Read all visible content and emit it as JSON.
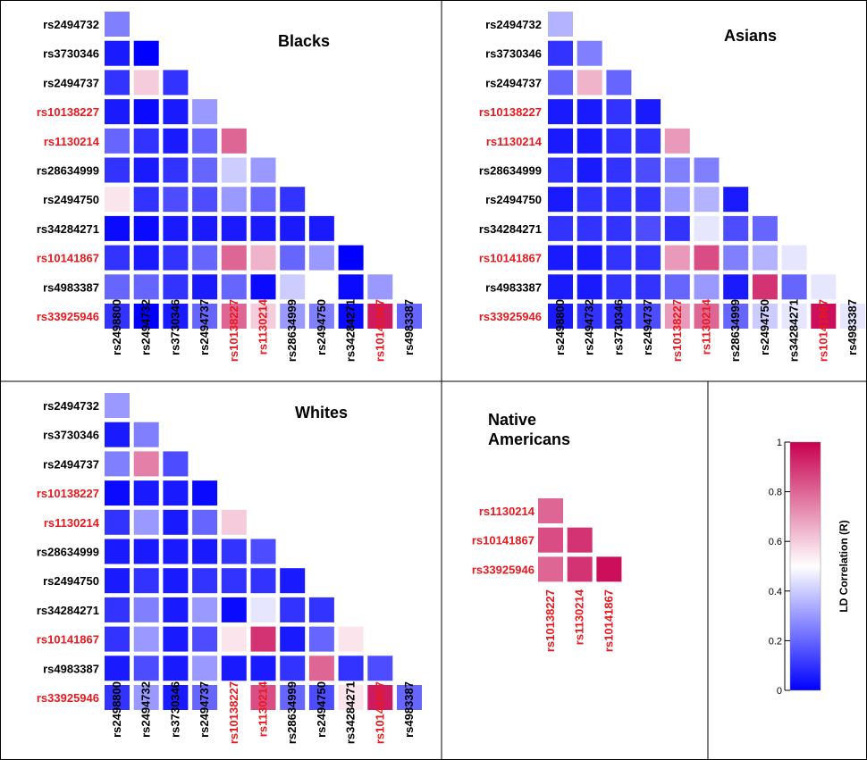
{
  "chart_data": [
    {
      "type": "heatmap",
      "title": "Blacks",
      "rows": [
        "rs2494732",
        "rs3730346",
        "rs2494737",
        "rs10138227",
        "rs1130214",
        "rs28634999",
        "rs2494750",
        "rs34284271",
        "rs10141867",
        "rs4983387",
        "rs33925946"
      ],
      "columns": [
        "rs2498800",
        "rs2494732",
        "rs3730346",
        "rs2494737",
        "rs10138227",
        "rs1130214",
        "rs28634999",
        "rs2494750",
        "rs34284271",
        "rs10141867",
        "rs4983387"
      ],
      "highlighted": [
        "rs10138227",
        "rs1130214",
        "rs10141867",
        "rs33925946"
      ],
      "values": [
        [
          0.25
        ],
        [
          0.05,
          0.0
        ],
        [
          0.1,
          0.6,
          0.1
        ],
        [
          0.05,
          0.02,
          0.05,
          0.3
        ],
        [
          0.2,
          0.1,
          0.05,
          0.2,
          0.8
        ],
        [
          0.1,
          0.05,
          0.1,
          0.2,
          0.4,
          0.3
        ],
        [
          0.55,
          0.1,
          0.15,
          0.15,
          0.3,
          0.2,
          0.1
        ],
        [
          0.02,
          0.02,
          0.05,
          0.05,
          0.05,
          0.05,
          0.05,
          0.05
        ],
        [
          0.1,
          0.05,
          0.1,
          0.2,
          0.8,
          0.65,
          0.2,
          0.3,
          0.0
        ],
        [
          0.2,
          0.2,
          0.1,
          0.05,
          0.2,
          0.02,
          0.4,
          0.5,
          0.02,
          0.3
        ],
        [
          0.1,
          0.0,
          0.05,
          0.2,
          0.8,
          0.6,
          0.3,
          0.25,
          0.02,
          0.95,
          0.2
        ]
      ]
    },
    {
      "type": "heatmap",
      "title": "Asians",
      "rows": [
        "rs2494732",
        "rs3730346",
        "rs2494737",
        "rs10138227",
        "rs1130214",
        "rs28634999",
        "rs2494750",
        "rs34284271",
        "rs10141867",
        "rs4983387",
        "rs33925946"
      ],
      "columns": [
        "rs2498800",
        "rs2494732",
        "rs3730346",
        "rs2494737",
        "rs10138227",
        "rs1130214",
        "rs28634999",
        "rs2494750",
        "rs34284271",
        "rs10141867",
        "rs4983387"
      ],
      "highlighted": [
        "rs10138227",
        "rs1130214",
        "rs10141867",
        "rs33925946"
      ],
      "values": [
        [
          0.35
        ],
        [
          0.1,
          0.25
        ],
        [
          0.2,
          0.65,
          0.2
        ],
        [
          0.05,
          0.05,
          0.1,
          0.05
        ],
        [
          0.05,
          0.05,
          0.1,
          0.1,
          0.7
        ],
        [
          0.1,
          0.05,
          0.1,
          0.15,
          0.25,
          0.25
        ],
        [
          0.05,
          0.1,
          0.1,
          0.1,
          0.3,
          0.35,
          0.05
        ],
        [
          0.1,
          0.1,
          0.1,
          0.15,
          0.1,
          0.45,
          0.15,
          0.2
        ],
        [
          0.05,
          0.05,
          0.1,
          0.1,
          0.7,
          0.85,
          0.25,
          0.35,
          0.45
        ],
        [
          0.05,
          0.05,
          0.1,
          0.1,
          0.2,
          0.3,
          0.05,
          0.9,
          0.2,
          0.45
        ],
        [
          0.05,
          0.1,
          0.1,
          0.15,
          0.7,
          0.8,
          0.2,
          0.4,
          0.45,
          0.97,
          0.45
        ]
      ]
    },
    {
      "type": "heatmap",
      "title": "Whites",
      "rows": [
        "rs2494732",
        "rs3730346",
        "rs2494737",
        "rs10138227",
        "rs1130214",
        "rs28634999",
        "rs2494750",
        "rs34284271",
        "rs10141867",
        "rs4983387",
        "rs33925946"
      ],
      "columns": [
        "rs2498800",
        "rs2494732",
        "rs3730346",
        "rs2494737",
        "rs10138227",
        "rs1130214",
        "rs28634999",
        "rs2494750",
        "rs34284271",
        "rs10141867",
        "rs4983387"
      ],
      "highlighted": [
        "rs10138227",
        "rs1130214",
        "rs10141867",
        "rs33925946"
      ],
      "values": [
        [
          0.3
        ],
        [
          0.05,
          0.25
        ],
        [
          0.25,
          0.75,
          0.15
        ],
        [
          0.02,
          0.05,
          0.05,
          0.02
        ],
        [
          0.1,
          0.3,
          0.05,
          0.2,
          0.6
        ],
        [
          0.05,
          0.05,
          0.05,
          0.05,
          0.1,
          0.15
        ],
        [
          0.05,
          0.1,
          0.05,
          0.1,
          0.1,
          0.1,
          0.05
        ],
        [
          0.1,
          0.25,
          0.05,
          0.3,
          0.02,
          0.45,
          0.1,
          0.1
        ],
        [
          0.1,
          0.3,
          0.05,
          0.15,
          0.55,
          0.9,
          0.05,
          0.2,
          0.55
        ],
        [
          0.05,
          0.15,
          0.05,
          0.3,
          0.05,
          0.05,
          0.1,
          0.8,
          0.1,
          0.15
        ],
        [
          0.1,
          0.3,
          0.05,
          0.2,
          0.5,
          0.85,
          0.2,
          0.15,
          0.55,
          0.95,
          0.2
        ]
      ]
    },
    {
      "type": "heatmap",
      "title": "Native\nAmericans",
      "rows": [
        "rs1130214",
        "rs10141867",
        "rs33925946"
      ],
      "columns": [
        "rs10138227",
        "rs1130214",
        "rs10141867"
      ],
      "highlighted": [
        "rs10138227",
        "rs1130214",
        "rs10141867",
        "rs33925946"
      ],
      "values": [
        [
          0.8
        ],
        [
          0.85,
          0.9
        ],
        [
          0.8,
          0.9,
          0.97
        ]
      ]
    }
  ],
  "legend": {
    "label": "LD Correlation (R)",
    "ticks": [
      "0",
      "0.2",
      "0.4",
      "0.6",
      "0.8",
      "1"
    ],
    "range": [
      0,
      1
    ],
    "colors": {
      "low": "#0000ff",
      "mid": "#ffffff",
      "high": "#c8004f"
    }
  },
  "colors": {
    "highlight_label": "#e8191e",
    "normal_label": "#000000",
    "border": "#000000"
  }
}
